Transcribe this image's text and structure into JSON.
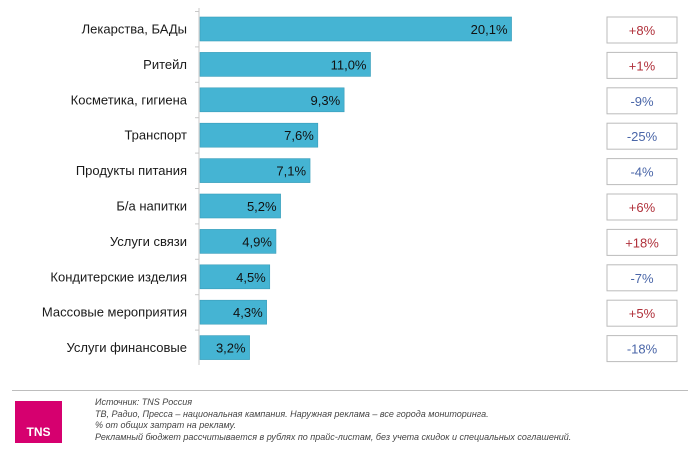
{
  "chart_data": {
    "type": "bar",
    "orientation": "horizontal",
    "title": "",
    "xlabel": "",
    "ylabel": "",
    "categories": [
      "Лекарства, БАДы",
      "Ритейл",
      "Косметика, гигиена",
      "Транспорт",
      "Продукты питания",
      "Б/а напитки",
      "Услуги связи",
      "Кондитерские изделия",
      "Массовые мероприятия",
      "Услуги финансовые"
    ],
    "values": [
      20.1,
      11.0,
      9.3,
      7.6,
      7.1,
      5.2,
      4.9,
      4.5,
      4.3,
      3.2
    ],
    "value_labels": [
      "20,1%",
      "11,0%",
      "9,3%",
      "7,6%",
      "7,1%",
      "5,2%",
      "4,9%",
      "4,5%",
      "4,3%",
      "3,2%"
    ],
    "changes": [
      "+8%",
      "+1%",
      "-9%",
      "-25%",
      "-4%",
      "+6%",
      "+18%",
      "-7%",
      "+5%",
      "-18%"
    ],
    "colors": {
      "bar": "#45b4d3",
      "bar_border": "#3a9dba",
      "positive": "#b0303a",
      "negative": "#4a66a8",
      "box_border": "#bbbbbb"
    }
  },
  "footer": {
    "logo": "TNS",
    "notes": [
      "Источник: TNS Россия",
      "ТВ, Радио, Пресса – национальная кампания. Наружная реклама – все города мониторинга.",
      "% от общих затрат на рекламу.",
      "Рекламный бюджет рассчитывается в рублях по прайс-листам, без учета скидок и специальных соглашений."
    ]
  }
}
